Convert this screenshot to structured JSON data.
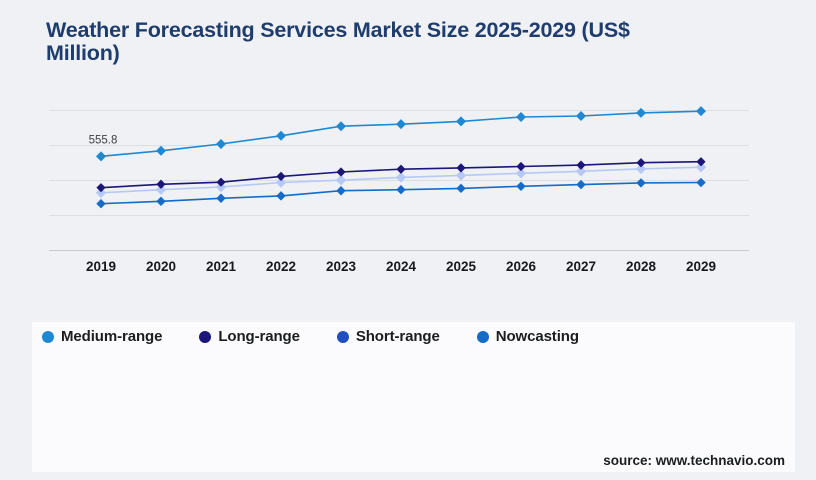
{
  "page": {
    "background_color": "#eff1f4",
    "panel_background_color": "#fbfbfd"
  },
  "title": {
    "text": "Weather Forecasting Services Market Size 2025-2029 (US$ Million)",
    "lines": [
      "Weather Forecasting Services Market Size 2025-2029 (US$",
      "Million)"
    ],
    "color": "#1e3d6e"
  },
  "source": {
    "label": "source: www.technavio.com"
  },
  "chart_data": {
    "type": "line",
    "title": "Weather Forecasting Services Market Size 2025-2029 (US$ Million)",
    "xlabel": "",
    "ylabel": "US$ Million",
    "x": [
      2019,
      2020,
      2021,
      2022,
      2023,
      2024,
      2025,
      2026,
      2027,
      2028,
      2029
    ],
    "series": [
      {
        "name": "Medium-range",
        "legend_color": "#1e88d2",
        "line_color": "#1e88d2",
        "values": [
          555.8,
          572,
          592,
          616,
          644,
          650,
          658,
          671,
          674,
          683,
          688
        ]
      },
      {
        "name": "Long-range",
        "legend_color": "#1c1678",
        "line_color": "#1c1678",
        "values": [
          464,
          474,
          480,
          497,
          510,
          518,
          522,
          526,
          530,
          537,
          540
        ]
      },
      {
        "name": "Short-range",
        "legend_color": "#1f4fbe",
        "line_color": "#b5c9f4",
        "values": [
          449,
          458,
          466,
          479,
          486,
          494,
          500,
          506,
          512,
          519,
          524
        ]
      },
      {
        "name": "Nowcasting",
        "legend_color": "#146bc9",
        "line_color": "#146bc9",
        "values": [
          417,
          424,
          433,
          440,
          455,
          458,
          462,
          468,
          473,
          478,
          479
        ]
      }
    ],
    "annotations": [
      {
        "series": "Medium-range",
        "x": 2019,
        "label": "555.8"
      }
    ],
    "ylim": [
      280,
      690
    ],
    "grid": true,
    "gridline_count": 5,
    "marker": "diamond",
    "legend_position": "bottom-left",
    "gridline_color": "#dcdee1",
    "axis_line_color": "#c9cbce"
  }
}
